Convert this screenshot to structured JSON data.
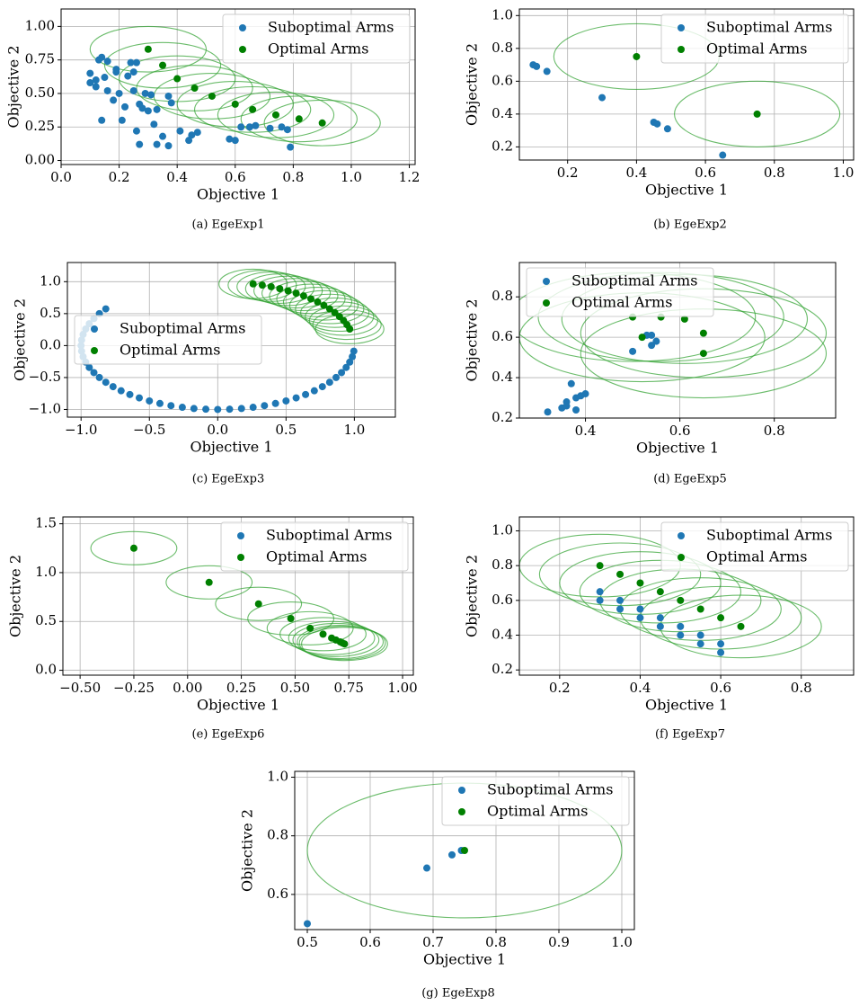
{
  "chart_data": [
    {
      "type": "scatter",
      "caption": "(a) EgeExp1",
      "xlabel": "Objective 1",
      "ylabel": "Objective 2",
      "xlim": [
        0,
        1.22
      ],
      "ylim": [
        -0.03,
        1.13
      ],
      "xticks": [
        {
          "value": 0,
          "label": "0.0"
        },
        0.2,
        0.4,
        0.6,
        0.8,
        {
          "value": 1,
          "label": "1.0"
        },
        1.2
      ],
      "yticks": [
        {
          "value": 0,
          "label": "0.00"
        },
        0.25,
        {
          "value": 0.5,
          "label": "0.50"
        },
        0.75,
        {
          "value": 1,
          "label": "1.00"
        }
      ],
      "grid": true,
      "legend": "upper-right",
      "ellipse_width": 0.4,
      "ellipse_height": 0.34,
      "ellipse_color": "#2ca02c",
      "series": [
        {
          "name": "Suboptimal Arms",
          "color": "#1f77b4",
          "x": [
            0.1,
            0.1,
            0.12,
            0.12,
            0.13,
            0.14,
            0.15,
            0.14,
            0.16,
            0.16,
            0.18,
            0.19,
            0.19,
            0.2,
            0.21,
            0.22,
            0.23,
            0.24,
            0.25,
            0.25,
            0.26,
            0.26,
            0.27,
            0.27,
            0.28,
            0.29,
            0.3,
            0.31,
            0.32,
            0.33,
            0.33,
            0.35,
            0.37,
            0.37,
            0.38,
            0.41,
            0.44,
            0.45,
            0.47,
            0.58,
            0.6,
            0.62,
            0.65,
            0.67,
            0.72,
            0.76,
            0.78,
            0.79
          ],
          "y": [
            0.65,
            0.58,
            0.6,
            0.55,
            0.75,
            0.77,
            0.62,
            0.3,
            0.74,
            0.52,
            0.45,
            0.68,
            0.66,
            0.5,
            0.3,
            0.4,
            0.63,
            0.73,
            0.52,
            0.66,
            0.73,
            0.22,
            0.12,
            0.42,
            0.39,
            0.5,
            0.37,
            0.49,
            0.27,
            0.38,
            0.12,
            0.18,
            0.11,
            0.48,
            0.43,
            0.22,
            0.15,
            0.19,
            0.21,
            0.16,
            0.15,
            0.25,
            0.25,
            0.26,
            0.24,
            0.25,
            0.23,
            0.1
          ]
        },
        {
          "name": "Optimal Arms",
          "color": "#008000",
          "x": [
            0.3,
            0.35,
            0.4,
            0.46,
            0.52,
            0.6,
            0.66,
            0.74,
            0.82,
            0.9
          ],
          "y": [
            0.83,
            0.71,
            0.61,
            0.54,
            0.48,
            0.42,
            0.38,
            0.34,
            0.31,
            0.28
          ]
        }
      ]
    },
    {
      "type": "scatter",
      "caption": "(b) EgeExp2",
      "xlabel": "Objective 1",
      "ylabel": "Objective 2",
      "xlim": [
        0.06,
        1.03
      ],
      "ylim": [
        0.12,
        1.04
      ],
      "xticks": [
        0.2,
        0.4,
        0.6,
        0.8,
        {
          "value": 1,
          "label": "1.0"
        }
      ],
      "yticks": [
        0.2,
        0.4,
        0.6,
        0.8,
        {
          "value": 1,
          "label": "1.0"
        }
      ],
      "grid": true,
      "legend": "upper-right",
      "ellipse_width": 0.48,
      "ellipse_height": 0.4,
      "ellipse_color": "#2ca02c",
      "series": [
        {
          "name": "Suboptimal Arms",
          "color": "#1f77b4",
          "x": [
            0.1,
            0.11,
            0.14,
            0.3,
            0.45,
            0.46,
            0.49,
            0.65
          ],
          "y": [
            0.7,
            0.69,
            0.66,
            0.5,
            0.35,
            0.34,
            0.31,
            0.15
          ]
        },
        {
          "name": "Optimal Arms",
          "color": "#008000",
          "x": [
            0.4,
            0.75
          ],
          "y": [
            0.75,
            0.4
          ]
        }
      ]
    },
    {
      "type": "scatter",
      "caption": "(c) EgeExp3",
      "xlabel": "Objective 1",
      "ylabel": "Objective 2",
      "xlim": [
        -1.1,
        1.3
      ],
      "ylim": [
        -1.12,
        1.3
      ],
      "xticks": [
        {
          "value": -1,
          "label": "−1.0"
        },
        {
          "value": -0.5,
          "label": "−0.5"
        },
        {
          "value": 0,
          "label": "0.0"
        },
        0.5,
        {
          "value": 1,
          "label": "1.0"
        }
      ],
      "yticks": [
        {
          "value": -1,
          "label": "−1.0"
        },
        {
          "value": -0.5,
          "label": "−0.5"
        },
        {
          "value": 0,
          "label": "0.0"
        },
        0.5,
        {
          "value": 1,
          "label": "1.0"
        }
      ],
      "grid": true,
      "legend": "center-left",
      "ellipse_width": 0.5,
      "ellipse_height": 0.46,
      "ellipse_color": "#2ca02c",
      "series": [
        {
          "name": "Suboptimal Arms",
          "color": "#1f77b4",
          "x": [
            -0.819,
            -0.866,
            -0.906,
            -0.94,
            -0.966,
            -0.985,
            -0.996,
            -1,
            -0.996,
            -0.985,
            -0.966,
            -0.94,
            -0.906,
            -0.866,
            -0.819,
            -0.766,
            -0.707,
            -0.643,
            -0.574,
            -0.5,
            -0.423,
            -0.342,
            -0.259,
            -0.174,
            -0.087,
            0,
            0.087,
            0.174,
            0.259,
            0.342,
            0.423,
            0.5,
            0.574,
            0.643,
            0.707,
            0.766,
            0.819,
            0.866,
            0.906,
            0.94,
            0.966,
            0.985,
            0.996
          ],
          "y": [
            0.574,
            0.5,
            0.423,
            0.342,
            0.259,
            0.174,
            0.087,
            0,
            -0.087,
            -0.174,
            -0.259,
            -0.342,
            -0.423,
            -0.5,
            -0.574,
            -0.643,
            -0.707,
            -0.766,
            -0.819,
            -0.866,
            -0.906,
            -0.94,
            -0.966,
            -0.985,
            -0.996,
            -1,
            -0.996,
            -0.985,
            -0.966,
            -0.94,
            -0.906,
            -0.866,
            -0.819,
            -0.766,
            -0.707,
            -0.643,
            -0.574,
            -0.5,
            -0.423,
            -0.342,
            -0.259,
            -0.174,
            -0.087
          ]
        },
        {
          "name": "Optimal Arms",
          "color": "#008000",
          "x": [
            0.259,
            0.326,
            0.391,
            0.454,
            0.515,
            0.574,
            0.629,
            0.682,
            0.731,
            0.777,
            0.819,
            0.857,
            0.891,
            0.921,
            0.946,
            0.966
          ],
          "y": [
            0.966,
            0.946,
            0.921,
            0.891,
            0.857,
            0.819,
            0.777,
            0.731,
            0.682,
            0.629,
            0.574,
            0.515,
            0.454,
            0.391,
            0.326,
            0.259
          ]
        }
      ]
    },
    {
      "type": "scatter",
      "caption": "(d) EgeExp5",
      "xlabel": "Objective 1",
      "ylabel": "Objective 2",
      "xlim": [
        0.26,
        0.93
      ],
      "ylim": [
        0.2,
        0.97
      ],
      "xticks": [
        0.4,
        0.6,
        0.8
      ],
      "yticks": [
        0.2,
        0.4,
        0.6,
        0.8
      ],
      "grid": true,
      "legend": "upper-left",
      "ellipse_width": 0.52,
      "ellipse_height": 0.44,
      "ellipse_color": "#2ca02c",
      "series": [
        {
          "name": "Suboptimal Arms",
          "color": "#1f77b4",
          "x": [
            0.32,
            0.35,
            0.36,
            0.36,
            0.37,
            0.38,
            0.38,
            0.39,
            0.4,
            0.5,
            0.53,
            0.54,
            0.54,
            0.55
          ],
          "y": [
            0.23,
            0.25,
            0.26,
            0.28,
            0.37,
            0.3,
            0.24,
            0.31,
            0.32,
            0.53,
            0.61,
            0.61,
            0.56,
            0.58
          ]
        },
        {
          "name": "Optimal Arms",
          "color": "#008000",
          "x": [
            0.5,
            0.52,
            0.56,
            0.61,
            0.65,
            0.65
          ],
          "y": [
            0.7,
            0.6,
            0.7,
            0.69,
            0.62,
            0.52
          ]
        }
      ]
    },
    {
      "type": "scatter",
      "caption": "(e) EgeExp6",
      "xlabel": "Objective 1",
      "ylabel": "Objective 2",
      "xlim": [
        -0.58,
        1.05
      ],
      "ylim": [
        -0.05,
        1.57
      ],
      "xticks": [
        {
          "value": -0.5,
          "label": "−0.50"
        },
        {
          "value": -0.25,
          "label": "−0.25"
        },
        {
          "value": 0,
          "label": "0.00"
        },
        0.25,
        {
          "value": 0.5,
          "label": "0.50"
        },
        0.75,
        {
          "value": 1,
          "label": "1.00"
        }
      ],
      "yticks": [
        {
          "value": 0,
          "label": "0.0"
        },
        0.5,
        {
          "value": 1,
          "label": "1.0"
        },
        1.5
      ],
      "grid": true,
      "legend": "upper-right",
      "ellipse_width": 0.4,
      "ellipse_height": 0.34,
      "ellipse_color": "#2ca02c",
      "series": [
        {
          "name": "Suboptimal Arms",
          "color": "#1f77b4",
          "x": [],
          "y": []
        },
        {
          "name": "Optimal Arms",
          "color": "#008000",
          "x": [
            -0.25,
            0.1,
            0.33,
            0.48,
            0.57,
            0.63,
            0.67,
            0.69,
            0.71,
            0.72,
            0.73
          ],
          "y": [
            1.25,
            0.9,
            0.68,
            0.53,
            0.43,
            0.37,
            0.33,
            0.31,
            0.29,
            0.28,
            0.27
          ]
        }
      ]
    },
    {
      "type": "scatter",
      "caption": "(f) EgeExp7",
      "xlabel": "Objective 1",
      "ylabel": "Objective 2",
      "xlim": [
        0.1,
        0.93
      ],
      "ylim": [
        0.17,
        1.08
      ],
      "xticks": [
        0.2,
        0.4,
        0.6,
        0.8
      ],
      "yticks": [
        0.2,
        0.4,
        0.6,
        0.8,
        {
          "value": 1,
          "label": "1.0"
        }
      ],
      "grid": true,
      "legend": "upper-right",
      "ellipse_width": 0.4,
      "ellipse_height": 0.36,
      "ellipse_color": "#2ca02c",
      "series": [
        {
          "name": "Suboptimal Arms",
          "color": "#1f77b4",
          "x": [
            0.3,
            0.3,
            0.35,
            0.35,
            0.4,
            0.4,
            0.45,
            0.45,
            0.5,
            0.5,
            0.55,
            0.55,
            0.6,
            0.6
          ],
          "y": [
            0.65,
            0.6,
            0.6,
            0.55,
            0.55,
            0.5,
            0.5,
            0.45,
            0.45,
            0.4,
            0.4,
            0.35,
            0.35,
            0.3
          ]
        },
        {
          "name": "Optimal Arms",
          "color": "#008000",
          "x": [
            0.3,
            0.35,
            0.4,
            0.45,
            0.5,
            0.55,
            0.6,
            0.65
          ],
          "y": [
            0.8,
            0.75,
            0.7,
            0.65,
            0.6,
            0.55,
            0.5,
            0.45
          ]
        }
      ]
    },
    {
      "type": "scatter",
      "caption": "(g) EgeExp8",
      "xlabel": "Objective 1",
      "ylabel": "Objective 2",
      "xlim": [
        0.48,
        1.02
      ],
      "ylim": [
        0.48,
        1.02
      ],
      "xticks": [
        0.5,
        0.6,
        0.7,
        0.8,
        0.9,
        {
          "value": 1,
          "label": "1.0"
        }
      ],
      "yticks": [
        0.6,
        0.8,
        {
          "value": 1,
          "label": "1.0"
        }
      ],
      "grid": true,
      "legend": "upper-right",
      "ellipse_width": 0.5,
      "ellipse_height": 0.46,
      "ellipse_color": "#2ca02c",
      "series": [
        {
          "name": "Suboptimal Arms",
          "color": "#1f77b4",
          "x": [
            0.5,
            0.69,
            0.73,
            0.745
          ],
          "y": [
            0.5,
            0.69,
            0.735,
            0.75
          ]
        },
        {
          "name": "Optimal Arms",
          "color": "#008000",
          "x": [
            0.75
          ],
          "y": [
            0.75
          ]
        }
      ]
    }
  ]
}
